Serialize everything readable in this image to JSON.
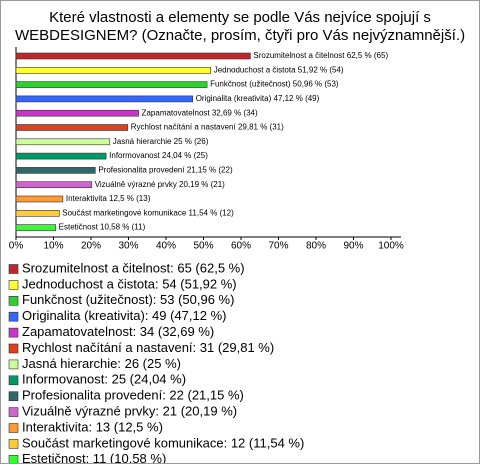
{
  "chart_data": {
    "type": "bar",
    "orientation": "horizontal",
    "title": "Které vlastnosti a elementy se podle Vás nejvíce spojují s WEBDESIGNEM? (Označte, prosím, čtyři pro Vás nejvýznamnější.)",
    "categories": [
      "Srozumitelnost a čitelnost",
      "Jednoduchost a čistota",
      "Funkčnost (užitečnost)",
      "Originalita (kreativita)",
      "Zapamatovatelnost",
      "Rychlost načítání a nastavení",
      "Jasná hierarchie",
      "Informovanost",
      "Profesionalita provedení",
      "Vizuálně výrazné prvky",
      "Interaktivita",
      "Součást marketingové komunikace",
      "Estetičnost"
    ],
    "values": [
      62.5,
      51.92,
      50.96,
      47.12,
      32.69,
      29.81,
      25,
      24.04,
      21.15,
      20.19,
      12.5,
      11.54,
      10.58
    ],
    "value_labels": [
      "Srozumitelnost a čitelnost 62,5 % (65)",
      "Jednoduchost a čistota 51,92 % (54)",
      "Funkčnost (užitečnost) 50,96 % (53)",
      "Originalita (kreativita) 47,12 % (49)",
      "Zapamatovatelnost 32,69 % (34)",
      "Rychlost načítání a nastavení 29,81 % (31)",
      "Jasná hierarchie 25 % (26)",
      "Informovanost 24,04 % (25)",
      "Profesionalita provedení 21,15 % (22)",
      "Vizuálně výrazné prvky 20,19 % (21)",
      "Interaktivita 12,5 % (13)",
      "Součást marketingové komunikace 11,54 % (12)",
      "Estetičnost 10,58 % (11)"
    ],
    "legend_labels": [
      "Srozumitelnost a čitelnost: 65 (62,5 %)",
      "Jednoduchost a čistota: 54 (51,92 %)",
      "Funkčnost (užitečnost): 53 (50,96 %)",
      "Originalita (kreativita): 49 (47,12 %)",
      "Zapamatovatelnost: 34 (32,69 %)",
      "Rychlost načítání a nastavení: 31 (29,81 %)",
      "Jasná hierarchie: 26 (25 %)",
      "Informovanost: 25 (24,04 %)",
      "Profesionalita provedení: 22 (21,15 %)",
      "Vizuálně výrazné prvky: 21 (20,19 %)",
      "Interaktivita: 13 (12,5 %)",
      "Součást marketingové komunikace: 12 (11,54 %)",
      "Estetičnost: 11 (10,58 %)"
    ],
    "colors": [
      "#c0272d",
      "#ffff33",
      "#33cc33",
      "#3366ff",
      "#cc33cc",
      "#e0401a",
      "#ccff99",
      "#009966",
      "#336666",
      "#cc66cc",
      "#ff9933",
      "#ffcc33",
      "#33ff33"
    ],
    "xlim": [
      0,
      100
    ],
    "xticks": [
      {
        "value": 0,
        "label": "0%"
      },
      {
        "value": 10,
        "label": "10%"
      },
      {
        "value": 20,
        "label": "20%"
      },
      {
        "value": 30,
        "label": "30%"
      },
      {
        "value": 40,
        "label": "40%"
      },
      {
        "value": 50,
        "label": "50%"
      },
      {
        "value": 60,
        "label": "60%"
      },
      {
        "value": 70,
        "label": "70%"
      },
      {
        "value": 80,
        "label": "80%"
      },
      {
        "value": 90,
        "label": "90%"
      },
      {
        "value": 100,
        "label": "100%"
      }
    ],
    "legend_position": "bottom"
  }
}
